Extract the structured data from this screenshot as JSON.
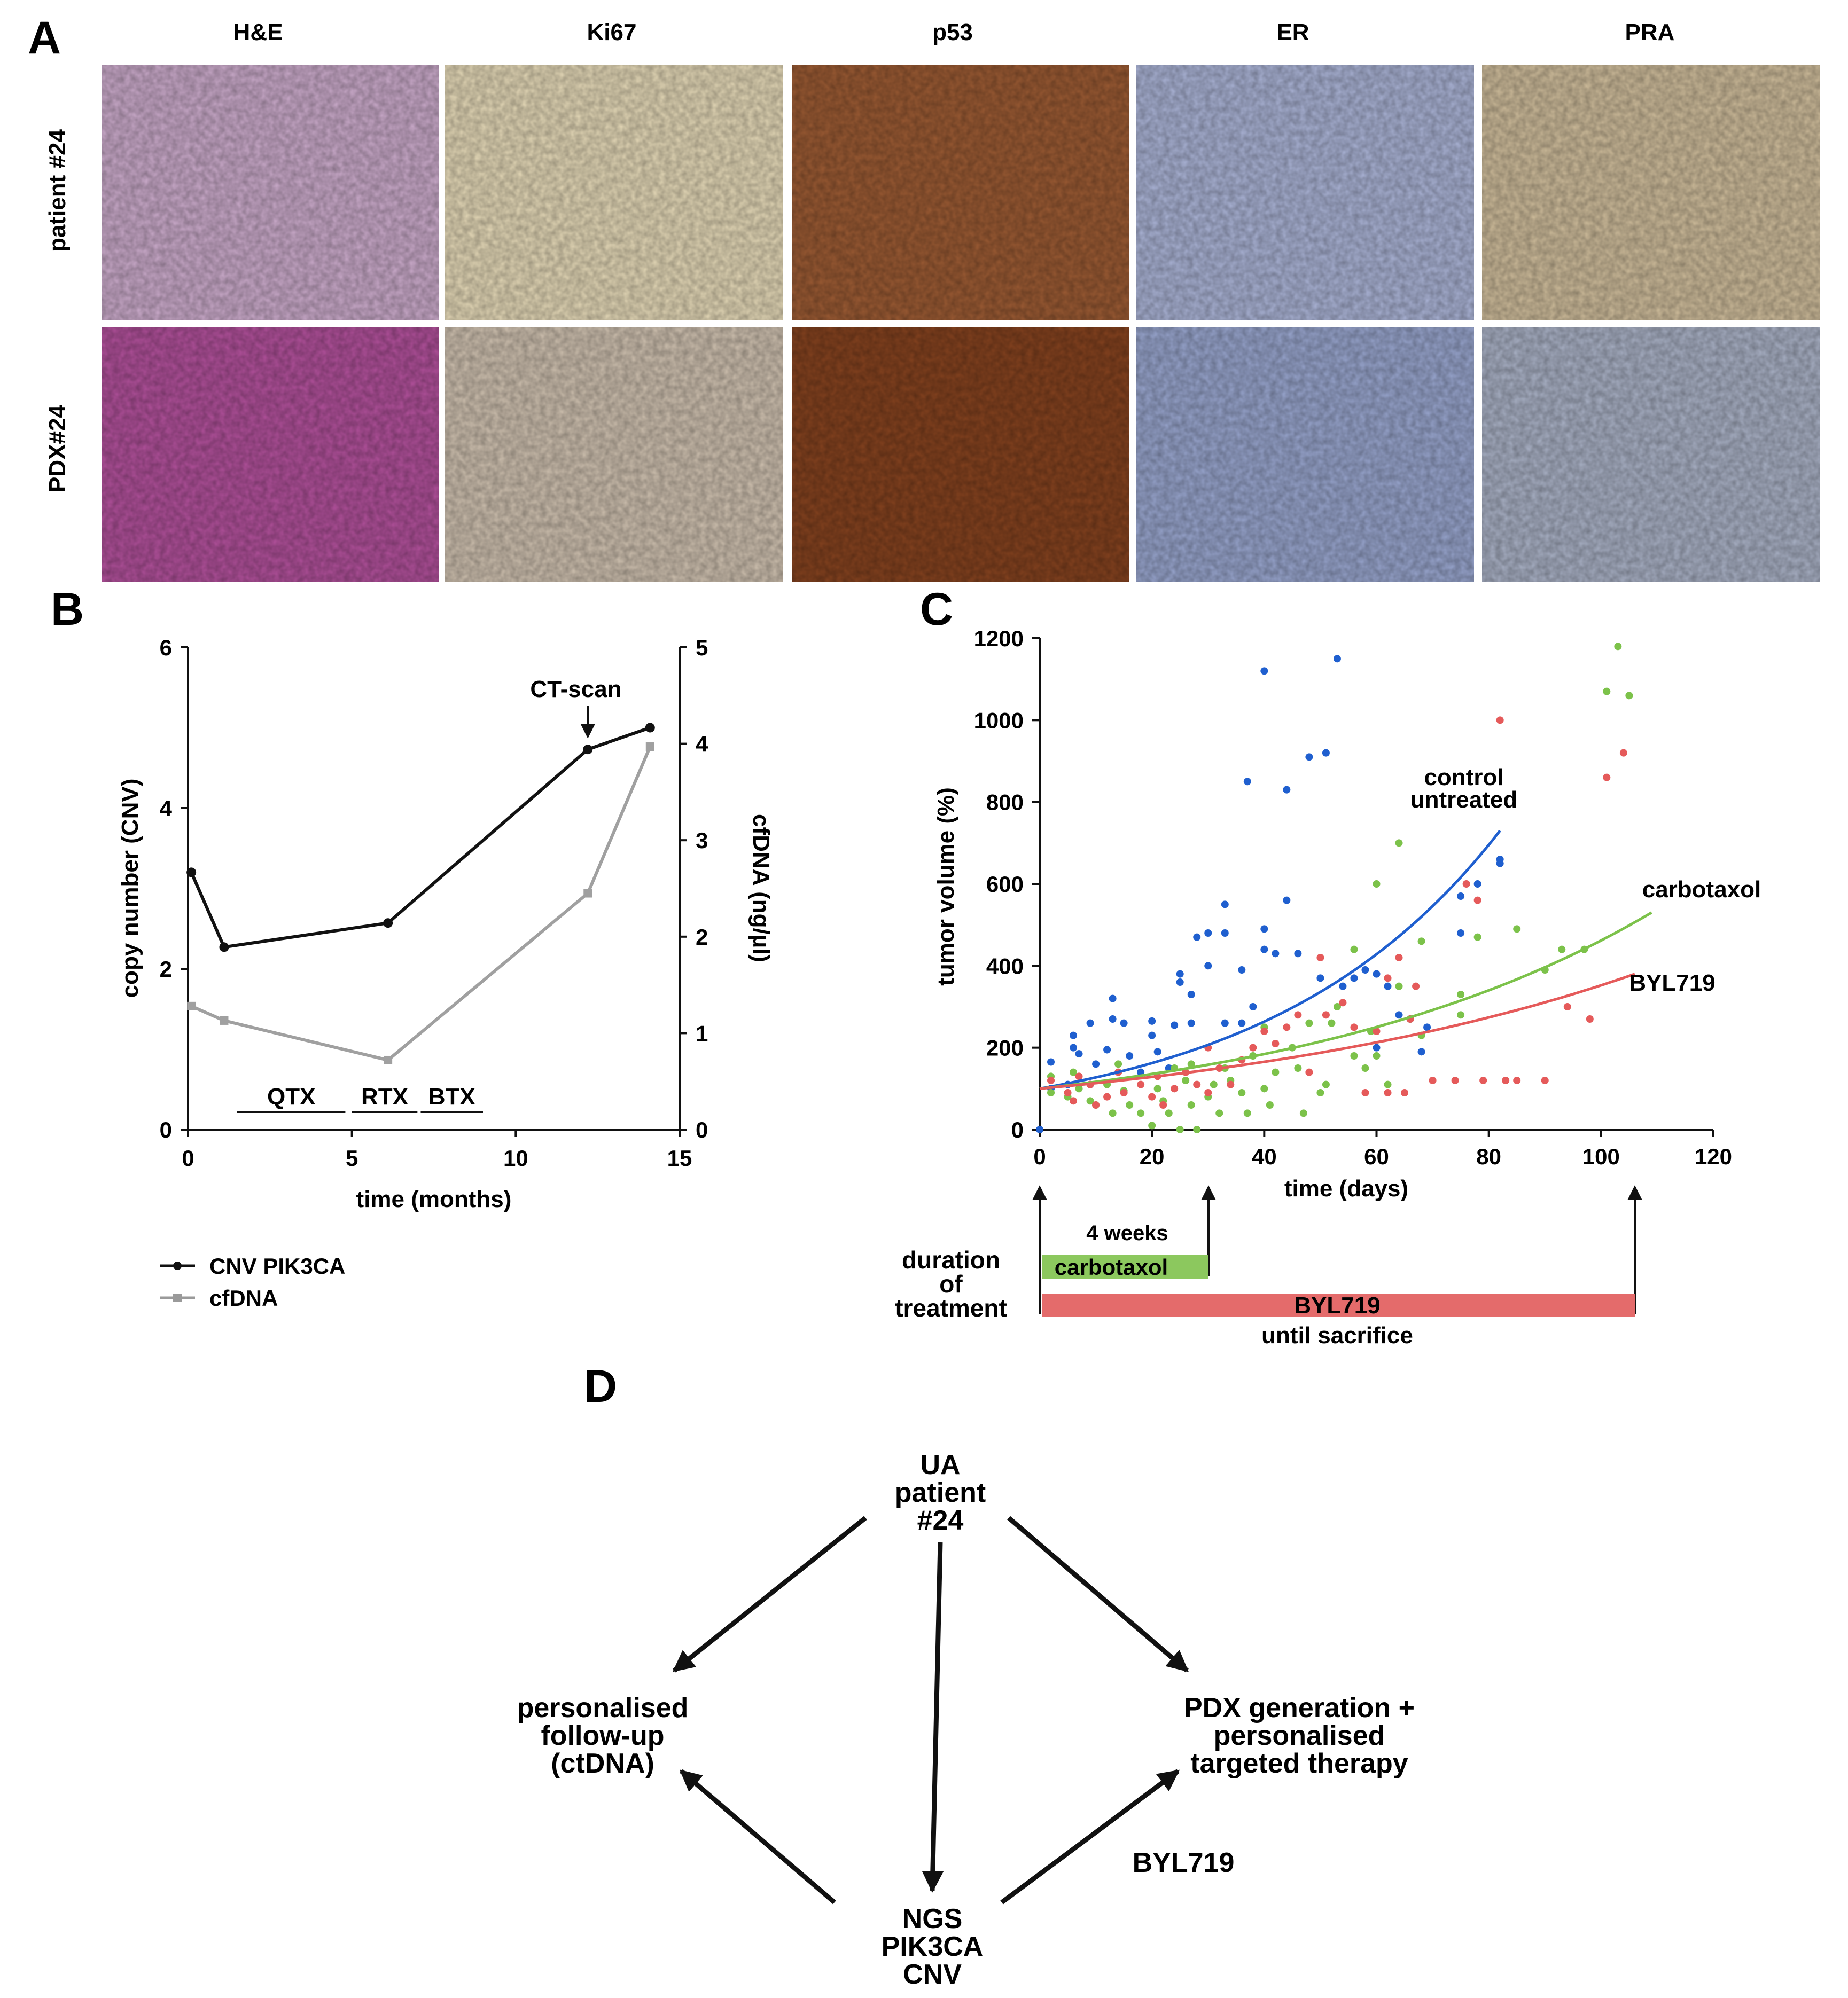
{
  "panels": {
    "A": {
      "letter": "A",
      "columns": [
        "H&E",
        "Ki67",
        "p53",
        "ER",
        "PRA"
      ],
      "rows": [
        "patient #24",
        "PDX#24"
      ],
      "tile_colors": {
        "patient #24": [
          "#c9a9c9",
          "#e3d7b6",
          "#9a5a33",
          "#a9b2d4",
          "#cdbb9a"
        ],
        "PDX#24": [
          "#b0509a",
          "#cdbfae",
          "#84421f",
          "#97a4cc",
          "#a8b0c4"
        ]
      }
    },
    "B": {
      "letter": "B",
      "annotation": "CT-scan",
      "treatments": [
        "QTX",
        "RTX",
        "BTX"
      ]
    },
    "C": {
      "letter": "C",
      "duration_label": "duration of treatment",
      "duration_lines": [
        "duration",
        "of",
        "treatment"
      ],
      "bar_labels": {
        "weeks": "4 weeks",
        "carbotaxol": "carbotaxol",
        "byl": "BYL719",
        "until": "until sacrifice"
      },
      "curve_labels": {
        "control_1": "control",
        "control_2": "untreated",
        "carbotaxol": "carbotaxol",
        "byl": "BYL719"
      }
    },
    "D": {
      "letter": "D",
      "nodes": {
        "top": [
          "UA",
          "patient",
          "#24"
        ],
        "left": [
          "personalised",
          "follow-up",
          "(ctDNA)"
        ],
        "right": [
          "PDX generation +",
          "personalised",
          "targeted therapy"
        ],
        "bottom": [
          "NGS",
          "PIK3CA",
          "CNV"
        ]
      },
      "edge_label": "BYL719"
    }
  },
  "chart_data": [
    {
      "type": "line",
      "panel": "B",
      "xlabel": "time (months)",
      "ylabel": "copy number (CNV)",
      "y2label": "cfDNA (ng/µl)",
      "xlim": [
        0,
        15
      ],
      "ylim": [
        0,
        6
      ],
      "y2lim": [
        0,
        5
      ],
      "xticks": [
        0,
        5,
        10,
        15
      ],
      "yticks": [
        0,
        2,
        4,
        6
      ],
      "y2ticks": [
        0,
        1,
        2,
        3,
        4,
        5
      ],
      "series": [
        {
          "name": "CNV PIK3CA",
          "axis": "left",
          "color": "#111111",
          "x": [
            0.1,
            1.1,
            6.1,
            12.2,
            14.1
          ],
          "y": [
            3.2,
            2.27,
            2.57,
            4.73,
            5.0
          ]
        },
        {
          "name": "cfDNA",
          "axis": "right",
          "color": "#a0a0a0",
          "x": [
            0.1,
            1.1,
            6.1,
            12.2,
            14.1
          ],
          "y": [
            1.28,
            1.13,
            0.72,
            2.45,
            3.97
          ]
        }
      ],
      "treatments": [
        {
          "label": "QTX",
          "start": 1.5,
          "end": 4.8
        },
        {
          "label": "RTX",
          "start": 5.0,
          "end": 7.0
        },
        {
          "label": "BTX",
          "start": 7.1,
          "end": 9.0
        }
      ],
      "annotation": {
        "text": "CT-scan",
        "x": 12.2
      },
      "legend": "bottom-left"
    },
    {
      "type": "scatter",
      "panel": "C",
      "xlabel": "time (days)",
      "ylabel": "tumor volume (%)",
      "xlim": [
        0,
        120
      ],
      "ylim": [
        0,
        1200
      ],
      "xticks": [
        0,
        20,
        40,
        60,
        80,
        100,
        120
      ],
      "yticks": [
        0,
        200,
        400,
        600,
        800,
        1000,
        1200
      ],
      "series": [
        {
          "name": "control untreated",
          "color": "#1f5fcf",
          "points": [
            [
              0,
              0
            ],
            [
              2,
              100
            ],
            [
              2,
              165
            ],
            [
              5,
              110
            ],
            [
              6,
              200
            ],
            [
              6,
              230
            ],
            [
              7,
              185
            ],
            [
              9,
              260
            ],
            [
              9,
              110
            ],
            [
              10,
              160
            ],
            [
              12,
              195
            ],
            [
              13,
              320
            ],
            [
              13,
              270
            ],
            [
              15,
              260
            ],
            [
              16,
              180
            ],
            [
              18,
              140
            ],
            [
              20,
              265
            ],
            [
              20,
              230
            ],
            [
              21,
              190
            ],
            [
              23,
              150
            ],
            [
              24,
              255
            ],
            [
              25,
              360
            ],
            [
              25,
              380
            ],
            [
              27,
              260
            ],
            [
              27,
              330
            ],
            [
              28,
              470
            ],
            [
              30,
              480
            ],
            [
              30,
              400
            ],
            [
              33,
              550
            ],
            [
              33,
              480
            ],
            [
              33,
              260
            ],
            [
              36,
              260
            ],
            [
              36,
              390
            ],
            [
              37,
              850
            ],
            [
              38,
              300
            ],
            [
              40,
              1120
            ],
            [
              40,
              440
            ],
            [
              40,
              490
            ],
            [
              42,
              430
            ],
            [
              44,
              830
            ],
            [
              44,
              560
            ],
            [
              46,
              430
            ],
            [
              48,
              910
            ],
            [
              50,
              370
            ],
            [
              51,
              920
            ],
            [
              53,
              1150
            ],
            [
              54,
              350
            ],
            [
              56,
              370
            ],
            [
              58,
              390
            ],
            [
              60,
              380
            ],
            [
              60,
              200
            ],
            [
              62,
              350
            ],
            [
              64,
              280
            ],
            [
              66,
              270
            ],
            [
              68,
              190
            ],
            [
              69,
              250
            ],
            [
              75,
              480
            ],
            [
              75,
              570
            ],
            [
              78,
              600
            ],
            [
              82,
              660
            ],
            [
              82,
              650
            ]
          ],
          "fit": {
            "x": [
              0,
              82
            ],
            "y": [
              100,
              730
            ]
          }
        },
        {
          "name": "carbotaxol",
          "color": "#7cc24a",
          "points": [
            [
              2,
              130
            ],
            [
              2,
              90
            ],
            [
              5,
              80
            ],
            [
              6,
              140
            ],
            [
              7,
              100
            ],
            [
              9,
              70
            ],
            [
              10,
              60
            ],
            [
              12,
              110
            ],
            [
              13,
              40
            ],
            [
              14,
              160
            ],
            [
              15,
              95
            ],
            [
              16,
              60
            ],
            [
              18,
              40
            ],
            [
              20,
              10
            ],
            [
              21,
              100
            ],
            [
              22,
              70
            ],
            [
              23,
              40
            ],
            [
              24,
              150
            ],
            [
              25,
              0
            ],
            [
              26,
              120
            ],
            [
              27,
              60
            ],
            [
              27,
              160
            ],
            [
              28,
              0
            ],
            [
              30,
              80
            ],
            [
              31,
              110
            ],
            [
              32,
              40
            ],
            [
              33,
              150
            ],
            [
              34,
              120
            ],
            [
              36,
              90
            ],
            [
              37,
              40
            ],
            [
              38,
              180
            ],
            [
              40,
              250
            ],
            [
              40,
              100
            ],
            [
              41,
              60
            ],
            [
              42,
              140
            ],
            [
              45,
              200
            ],
            [
              46,
              150
            ],
            [
              47,
              40
            ],
            [
              48,
              260
            ],
            [
              50,
              90
            ],
            [
              51,
              110
            ],
            [
              52,
              260
            ],
            [
              53,
              300
            ],
            [
              56,
              180
            ],
            [
              56,
              440
            ],
            [
              58,
              150
            ],
            [
              59,
              240
            ],
            [
              60,
              600
            ],
            [
              60,
              180
            ],
            [
              62,
              110
            ],
            [
              64,
              700
            ],
            [
              64,
              350
            ],
            [
              66,
              270
            ],
            [
              68,
              460
            ],
            [
              68,
              230
            ],
            [
              75,
              330
            ],
            [
              75,
              280
            ],
            [
              78,
              470
            ],
            [
              85,
              490
            ],
            [
              90,
              390
            ],
            [
              93,
              440
            ],
            [
              97,
              440
            ],
            [
              101,
              1070
            ],
            [
              103,
              1180
            ],
            [
              105,
              1060
            ]
          ],
          "fit": {
            "x": [
              0,
              109
            ],
            "y": [
              100,
              530
            ]
          }
        },
        {
          "name": "BYL719",
          "color": "#e55a5a",
          "points": [
            [
              2,
              120
            ],
            [
              5,
              90
            ],
            [
              6,
              70
            ],
            [
              7,
              130
            ],
            [
              9,
              110
            ],
            [
              10,
              60
            ],
            [
              12,
              80
            ],
            [
              14,
              140
            ],
            [
              15,
              90
            ],
            [
              18,
              110
            ],
            [
              20,
              80
            ],
            [
              21,
              130
            ],
            [
              22,
              60
            ],
            [
              24,
              100
            ],
            [
              26,
              140
            ],
            [
              28,
              110
            ],
            [
              30,
              90
            ],
            [
              30,
              200
            ],
            [
              32,
              150
            ],
            [
              34,
              110
            ],
            [
              36,
              170
            ],
            [
              38,
              200
            ],
            [
              40,
              240
            ],
            [
              42,
              210
            ],
            [
              44,
              250
            ],
            [
              46,
              280
            ],
            [
              48,
              140
            ],
            [
              50,
              420
            ],
            [
              51,
              280
            ],
            [
              54,
              310
            ],
            [
              56,
              250
            ],
            [
              58,
              90
            ],
            [
              60,
              240
            ],
            [
              62,
              90
            ],
            [
              62,
              370
            ],
            [
              64,
              420
            ],
            [
              65,
              90
            ],
            [
              66,
              270
            ],
            [
              67,
              350
            ],
            [
              70,
              120
            ],
            [
              74,
              120
            ],
            [
              76,
              600
            ],
            [
              78,
              560
            ],
            [
              79,
              120
            ],
            [
              82,
              1000
            ],
            [
              83,
              120
            ],
            [
              85,
              120
            ],
            [
              90,
              120
            ],
            [
              94,
              300
            ],
            [
              98,
              270
            ],
            [
              101,
              860
            ],
            [
              104,
              920
            ]
          ],
          "fit": {
            "x": [
              0,
              106
            ],
            "y": [
              100,
              380
            ]
          }
        }
      ],
      "treatment_bars": [
        {
          "label": "carbotaxol",
          "start": 0,
          "end": 30,
          "color": "#8cc85e"
        },
        {
          "label": "BYL719",
          "start": 0,
          "end": 106,
          "color": "#e46b6b"
        }
      ]
    }
  ]
}
